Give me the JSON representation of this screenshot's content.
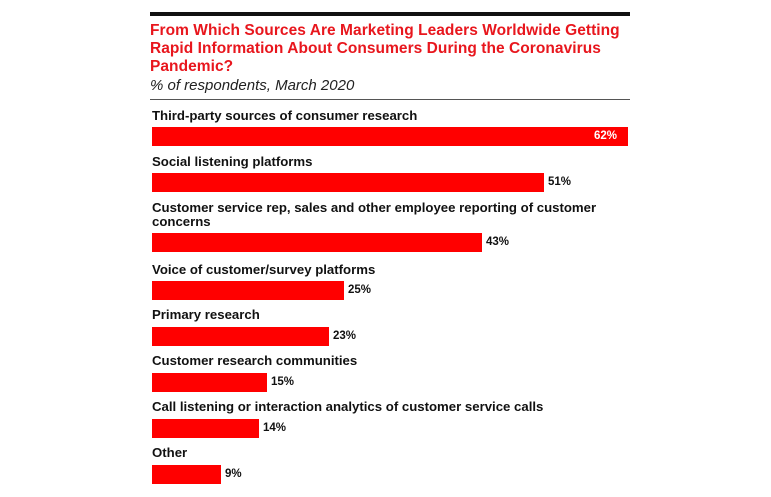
{
  "chart_data": {
    "type": "bar",
    "orientation": "horizontal",
    "title": "From Which Sources Are Marketing Leaders Worldwide Getting Rapid Information About Consumers During the Coronavirus Pandemic?",
    "subtitle": "% of respondents, March 2020",
    "categories": [
      "Third-party sources of consumer research",
      "Social listening platforms",
      "Customer service rep, sales and other employee reporting of customer concerns",
      "Voice of customer/survey platforms",
      "Primary research",
      "Customer research communities",
      "Call listening or interaction analytics of customer service calls",
      "Other"
    ],
    "values": [
      62,
      51,
      43,
      25,
      23,
      15,
      14,
      9
    ],
    "value_labels": [
      "62%",
      "51%",
      "43%",
      "25%",
      "23%",
      "15%",
      "14%",
      "9%"
    ],
    "xlim": [
      0,
      62
    ],
    "grid": false,
    "colors": {
      "bar": "#ff0000",
      "title": "#e8161d"
    }
  }
}
